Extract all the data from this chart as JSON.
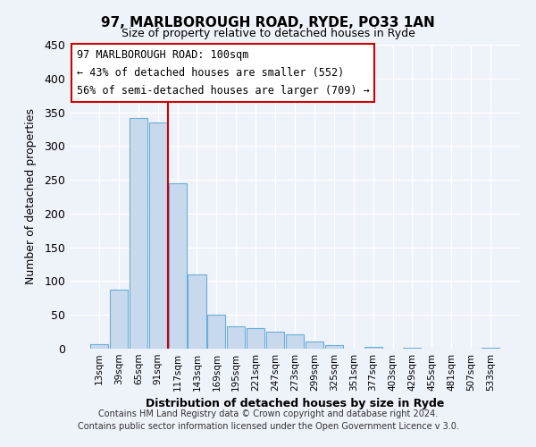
{
  "title": "97, MARLBOROUGH ROAD, RYDE, PO33 1AN",
  "subtitle": "Size of property relative to detached houses in Ryde",
  "xlabel": "Distribution of detached houses by size in Ryde",
  "ylabel": "Number of detached properties",
  "bar_color": "#c8d9ee",
  "bar_edge_color": "#6aaed6",
  "bin_labels": [
    "13sqm",
    "39sqm",
    "65sqm",
    "91sqm",
    "117sqm",
    "143sqm",
    "169sqm",
    "195sqm",
    "221sqm",
    "247sqm",
    "273sqm",
    "299sqm",
    "325sqm",
    "351sqm",
    "377sqm",
    "403sqm",
    "429sqm",
    "455sqm",
    "481sqm",
    "507sqm",
    "533sqm"
  ],
  "bar_values": [
    7,
    88,
    341,
    335,
    245,
    110,
    50,
    33,
    30,
    25,
    21,
    10,
    5,
    0,
    2,
    0,
    1,
    0,
    0,
    0,
    1
  ],
  "ylim": [
    0,
    450
  ],
  "yticks": [
    0,
    50,
    100,
    150,
    200,
    250,
    300,
    350,
    400,
    450
  ],
  "vline_x": 3.5,
  "vline_color": "#cc0000",
  "annotation_text_line1": "97 MARLBOROUGH ROAD: 100sqm",
  "annotation_text_line2": "← 43% of detached houses are smaller (552)",
  "annotation_text_line3": "56% of semi-detached houses are larger (709) →",
  "footer_line1": "Contains HM Land Registry data © Crown copyright and database right 2024.",
  "footer_line2": "Contains public sector information licensed under the Open Government Licence v 3.0.",
  "background_color": "#eef2f9",
  "grid_color": "#ffffff"
}
